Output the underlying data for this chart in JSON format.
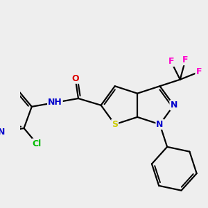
{
  "bg_color": "#eeeeee",
  "bond_color": "#000000",
  "bond_width": 1.6,
  "atom_colors": {
    "N": "#0000cc",
    "O": "#dd0000",
    "S": "#cccc00",
    "Cl": "#00bb00",
    "F": "#ff00cc",
    "C": "#000000",
    "H": "#000000"
  },
  "figsize": [
    3.0,
    3.0
  ],
  "dpi": 100
}
